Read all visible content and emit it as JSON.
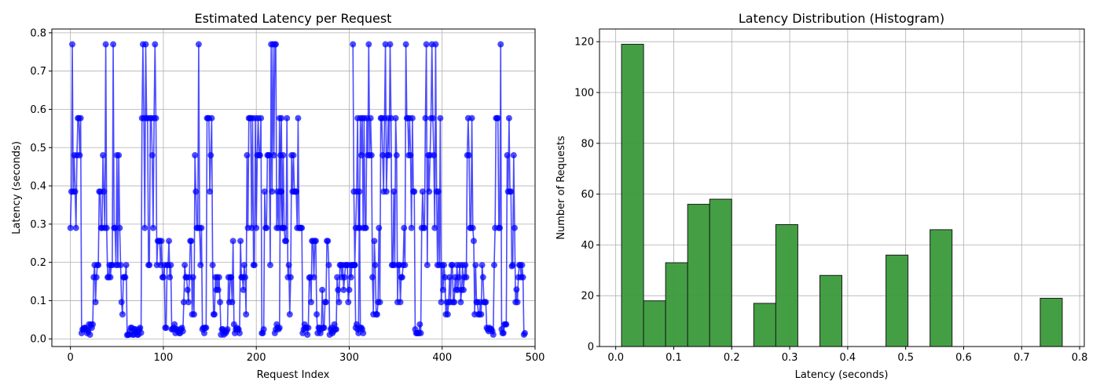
{
  "chart_data": [
    {
      "type": "line",
      "title": "Estimated Latency per Request",
      "xlabel": "Request Index",
      "ylabel": "Latency (seconds)",
      "xlim": [
        -20,
        500
      ],
      "ylim": [
        -0.02,
        0.81
      ],
      "xticks": [
        0,
        100,
        200,
        300,
        400,
        500
      ],
      "yticks": [
        0.0,
        0.1,
        0.2,
        0.3,
        0.4,
        0.5,
        0.6,
        0.7,
        0.8
      ],
      "ytick_labels": [
        "0.0",
        "0.1",
        "0.2",
        "0.3",
        "0.4",
        "0.5",
        "0.6",
        "0.7",
        "0.8"
      ],
      "grid": true,
      "color": "#0000ff",
      "series": [
        {
          "x_start": 0,
          "values": [
            0.29,
            0.385,
            0.77,
            0.385,
            0.48,
            0.385,
            0.29,
            0.48,
            0.577,
            0.577,
            0.48,
            0.577,
            0.015,
            0.025,
            0.025,
            0.029,
            0.029,
            0.025,
            0.015,
            0.02,
            0.038,
            0.011,
            0.038,
            0.029,
            0.038,
            0.161,
            0.193,
            0.096,
            0.161,
            0.193,
            0.193,
            0.385,
            0.385,
            0.29,
            0.29,
            0.48,
            0.385,
            0.29,
            0.77,
            0.29,
            0.161,
            0.161,
            0.193,
            0.161,
            0.193,
            0.193,
            0.77,
            0.29,
            0.29,
            0.193,
            0.48,
            0.193,
            0.48,
            0.29,
            0.193,
            0.096,
            0.064,
            0.161,
            0.161,
            0.161,
            0.193,
            0.01,
            0.011,
            0.011,
            0.02,
            0.029,
            0.029,
            0.011,
            0.011,
            0.025,
            0.025,
            0.02,
            0.011,
            0.011,
            0.025,
            0.029,
            0.016,
            0.577,
            0.77,
            0.577,
            0.29,
            0.77,
            0.577,
            0.577,
            0.193,
            0.193,
            0.577,
            0.577,
            0.48,
            0.29,
            0.577,
            0.77,
            0.577,
            0.193,
            0.256,
            0.256,
            0.256,
            0.193,
            0.256,
            0.161,
            0.161,
            0.193,
            0.029,
            0.029,
            0.193,
            0.193,
            0.256,
            0.161,
            0.193,
            0.025,
            0.025,
            0.029,
            0.038,
            0.015,
            0.025,
            0.025,
            0.02,
            0.015,
            0.015,
            0.025,
            0.029,
            0.02,
            0.096,
            0.193,
            0.161,
            0.161,
            0.128,
            0.096,
            0.161,
            0.256,
            0.256,
            0.064,
            0.161,
            0.064,
            0.48,
            0.385,
            0.29,
            0.29,
            0.77,
            0.29,
            0.193,
            0.29,
            0.025,
            0.029,
            0.015,
            0.029,
            0.029,
            0.577,
            0.577,
            0.577,
            0.385,
            0.48,
            0.577,
            0.193,
            0.064,
            0.064,
            0.161,
            0.128,
            0.161,
            0.128,
            0.161,
            0.096,
            0.011,
            0.025,
            0.025,
            0.011,
            0.02,
            0.015,
            0.02,
            0.025,
            0.161,
            0.096,
            0.161,
            0.161,
            0.096,
            0.256,
            0.038,
            0.015,
            0.025,
            0.029,
            0.025,
            0.025,
            0.015,
            0.256,
            0.161,
            0.161,
            0.128,
            0.193,
            0.161,
            0.064,
            0.48,
            0.29,
            0.577,
            0.577,
            0.577,
            0.29,
            0.577,
            0.193,
            0.193,
            0.577,
            0.29,
            0.48,
            0.577,
            0.48,
            0.48,
            0.577,
            0.015,
            0.015,
            0.025,
            0.385,
            0.29,
            0.29,
            0.48,
            0.48,
            0.48,
            0.193,
            0.77,
            0.385,
            0.77,
            0.48,
            0.77,
            0.77,
            0.29,
            0.385,
            0.29,
            0.577,
            0.385,
            0.385,
            0.29,
            0.29
          ]
        },
        {
          "x_start": 220,
          "values": [
            0.015,
            0.025,
            0.038,
            0.029,
            0.025,
            0.029,
            0.48,
            0.577,
            0.29,
            0.48,
            0.29,
            0.256,
            0.256,
            0.577,
            0.161,
            0.193,
            0.064,
            0.161,
            0.48,
            0.385,
            0.48,
            0.385,
            0.385,
            0.385,
            0.29,
            0.577,
            0.29,
            0.29,
            0.29,
            0.29,
            0.015,
            0.025,
            0.038,
            0.029,
            0.029,
            0.011,
            0.029,
            0.16,
            0.161,
            0.096,
            0.256,
            0.256,
            0.161,
            0.256,
            0.256,
            0.064,
            0.015,
            0.029,
            0.029,
            0.015,
            0.025,
            0.128,
            0.029,
            0.029,
            0.096,
            0.096,
            0.256,
            0.256,
            0.193,
            0.011,
            0.025,
            0.029,
            0.015,
            0.02,
            0.038,
            0.025,
            0.025,
            0.161,
            0.128,
            0.096,
            0.193,
            0.193,
            0.161,
            0.193,
            0.128,
            0.161,
            0.193,
            0.193,
            0.193,
            0.096,
            0.128,
            0.193,
            0.161,
            0.193,
            0.193,
            0.193,
            0.193,
            0.029,
            0.038,
            0.025,
            0.015,
            0.385,
            0.029,
            0.029,
            0.025,
            0.015
          ]
        },
        {
          "x_start": 304,
          "values": [
            0.77,
            0.385,
            0.193,
            0.29,
            0.385,
            0.577,
            0.29,
            0.29,
            0.577,
            0.48,
            0.577,
            0.29,
            0.577,
            0.29,
            0.29,
            0.577,
            0.48,
            0.77,
            0.48,
            0.577,
            0.48,
            0.161,
            0.064,
            0.256,
            0.193,
            0.064,
            0.064,
            0.096,
            0.29,
            0.096,
            0.577,
            0.577,
            0.48,
            0.385,
            0.577,
            0.77,
            0.385,
            0.48,
            0.577,
            0.48,
            0.77,
            0.577,
            0.193,
            0.193,
            0.385,
            0.193,
            0.577,
            0.48,
            0.096,
            0.193,
            0.193,
            0.096,
            0.161,
            0.161,
            0.193,
            0.29,
            0.193,
            0.77,
            0.577,
            0.577,
            0.48,
            0.577,
            0.48,
            0.29,
            0.577,
            0.385,
            0.385,
            0.025,
            0.015,
            0.015,
            0.015,
            0.015,
            0.038,
            0.015,
            0.29,
            0.385,
            0.29,
            0.29,
            0.577,
            0.77,
            0.193,
            0.48,
            0.385,
            0.48,
            0.577,
            0.77,
            0.577,
            0.48,
            0.29,
            0.77,
            0.385,
            0.193,
            0.385,
            0.193,
            0.577,
            0.096,
            0.193,
            0.128,
            0.193,
            0.161,
            0.064,
            0.096,
            0.064,
            0.096,
            0.161,
            0.096,
            0.193,
            0.193,
            0.096,
            0.096,
            0.161,
            0.128,
            0.193,
            0.128,
            0.161,
            0.193,
            0.096,
            0.128,
            0.193,
            0.128,
            0.161,
            0.193,
            0.161,
            0.48,
            0.577,
            0.48,
            0.29,
            0.29,
            0.577,
            0.29,
            0.256,
            0.064,
            0.193,
            0.096,
            0.096,
            0.064,
            0.064,
            0.096,
            0.064,
            0.193,
            0.161,
            0.096,
            0.096,
            0.096,
            0.029,
            0.025,
            0.02,
            0.029,
            0.025,
            0.025,
            0.02,
            0.011,
            0.193,
            0.29,
            0.577,
            0.577,
            0.577,
            0.29,
            0.29,
            0.77,
            0.025,
            0.015,
            0.015,
            0.038,
            0.038,
            0.038,
            0.48,
            0.385,
            0.577,
            0.385,
            0.385,
            0.19,
            0.193,
            0.48,
            0.29,
            0.096,
            0.129,
            0.096,
            0.161,
            0.193,
            0.193,
            0.161,
            0.193,
            0.161,
            0.011,
            0.015
          ]
        }
      ]
    },
    {
      "type": "bar",
      "title": "Latency Distribution (Histogram)",
      "xlabel": "Latency (seconds)",
      "ylabel": "Number of Requests",
      "xlim": [
        -0.028,
        0.808
      ],
      "ylim": [
        0,
        125
      ],
      "xticks": [
        0.0,
        0.1,
        0.2,
        0.3,
        0.4,
        0.5,
        0.6,
        0.7,
        0.8
      ],
      "xtick_labels": [
        "0.0",
        "0.1",
        "0.2",
        "0.3",
        "0.4",
        "0.5",
        "0.6",
        "0.7",
        "0.8"
      ],
      "yticks": [
        0,
        20,
        40,
        60,
        80,
        100,
        120
      ],
      "grid": true,
      "color": "#3a9a3a",
      "bins": [
        {
          "start": 0.01,
          "end": 0.048,
          "count": 119
        },
        {
          "start": 0.048,
          "end": 0.086,
          "count": 18
        },
        {
          "start": 0.086,
          "end": 0.124,
          "count": 33
        },
        {
          "start": 0.124,
          "end": 0.162,
          "count": 56
        },
        {
          "start": 0.162,
          "end": 0.2,
          "count": 58
        },
        {
          "start": 0.238,
          "end": 0.276,
          "count": 17
        },
        {
          "start": 0.276,
          "end": 0.314,
          "count": 48
        },
        {
          "start": 0.352,
          "end": 0.39,
          "count": 28
        },
        {
          "start": 0.466,
          "end": 0.504,
          "count": 36
        },
        {
          "start": 0.542,
          "end": 0.58,
          "count": 46
        },
        {
          "start": 0.732,
          "end": 0.77,
          "count": 19
        }
      ]
    }
  ]
}
